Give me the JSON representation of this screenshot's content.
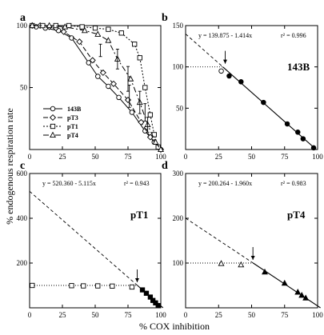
{
  "figure": {
    "ylabel": "% endogenous respiration rate",
    "xlabel": "% COX inhibition"
  },
  "chart_data": [
    {
      "type": "line",
      "panel_letter": "a",
      "xlim": [
        0,
        100
      ],
      "ylim": [
        0,
        100
      ],
      "xticks": [
        0,
        25,
        50,
        75,
        100
      ],
      "yticks": [
        50,
        100
      ],
      "legend_position": "bottom-left",
      "series": [
        {
          "name": "143B",
          "marker": "circle",
          "dash": "solid",
          "points": [
            [
              2,
              100
            ],
            [
              5,
              99
            ],
            [
              12,
              98
            ],
            [
              22,
              96
            ],
            [
              32,
              90
            ],
            [
              45,
              70
            ],
            [
              52,
              59
            ],
            [
              60,
              51
            ],
            [
              68,
              42
            ],
            [
              78,
              30
            ],
            [
              88,
              15
            ],
            [
              95,
              6
            ],
            [
              100,
              0
            ]
          ]
        },
        {
          "name": "pT3",
          "marker": "diamond",
          "dash": "6 3",
          "points": [
            [
              2,
              100
            ],
            [
              8,
              100
            ],
            [
              15,
              99
            ],
            [
              20,
              98
            ],
            [
              26,
              95
            ],
            [
              38,
              87
            ],
            [
              48,
              72
            ],
            [
              56,
              62
            ],
            [
              64,
              53
            ],
            [
              75,
              40
            ],
            [
              85,
              22
            ],
            [
              92,
              10
            ],
            [
              100,
              0
            ]
          ]
        },
        {
          "name": "pT1",
          "marker": "square",
          "dash": "2 2",
          "points": [
            [
              2,
              100
            ],
            [
              10,
              100
            ],
            [
              20,
              100
            ],
            [
              30,
              100
            ],
            [
              40,
              99
            ],
            [
              50,
              98
            ],
            [
              60,
              97
            ],
            [
              70,
              94
            ],
            [
              80,
              85
            ],
            [
              84,
              74
            ],
            [
              88,
              50
            ],
            [
              92,
              28
            ],
            [
              95,
              12
            ],
            [
              98,
              2
            ]
          ]
        },
        {
          "name": "pT4",
          "marker": "triangle",
          "dash": "7 3 2 3",
          "points": [
            [
              2,
              100
            ],
            [
              15,
              100
            ],
            [
              27,
              99
            ],
            [
              42,
              96
            ],
            [
              52,
              93
            ],
            [
              60,
              88
            ],
            [
              67,
              73
            ],
            [
              77,
              57
            ],
            [
              84,
              38
            ],
            [
              90,
              20
            ],
            [
              96,
              6
            ],
            [
              100,
              0
            ]
          ]
        }
      ],
      "error_bars": [
        {
          "x": 54,
          "y": 80,
          "err": 5
        },
        {
          "x": 67,
          "y": 73,
          "err": 8
        },
        {
          "x": 75,
          "y": 57,
          "err": 10
        },
        {
          "x": 76,
          "y": 43,
          "err": 9
        },
        {
          "x": 84,
          "y": 38,
          "err": 9
        },
        {
          "x": 88,
          "y": 30,
          "err": 7
        },
        {
          "x": 90,
          "y": 20,
          "err": 6
        }
      ]
    },
    {
      "type": "scatter",
      "panel_letter": "b",
      "label": "143B",
      "equation": "y = 139.875 - 1.414x",
      "r2": "r² = 0.996",
      "xlim": [
        0,
        100
      ],
      "ylim": [
        0,
        150
      ],
      "xticks": [
        0,
        25,
        50,
        75,
        100
      ],
      "yticks": [
        50,
        100,
        150
      ],
      "fit": {
        "intercept": 139.875,
        "slope": -1.414
      },
      "baseline": 100,
      "arrow_x": 30,
      "points": [
        {
          "x": 27,
          "y": 95,
          "filled": false
        },
        {
          "x": 33,
          "y": 89,
          "filled": true
        },
        {
          "x": 42,
          "y": 82,
          "filled": true
        },
        {
          "x": 59,
          "y": 57,
          "filled": true
        },
        {
          "x": 77,
          "y": 31,
          "filled": true
        },
        {
          "x": 85,
          "y": 21,
          "filled": true
        },
        {
          "x": 89,
          "y": 13,
          "filled": true
        },
        {
          "x": 97,
          "y": 2,
          "filled": true
        }
      ]
    },
    {
      "type": "scatter",
      "panel_letter": "c",
      "label": "pT1",
      "equation": "y = 520.360 - 5.115x",
      "r2": "r² = 0.943",
      "xlim": [
        0,
        100
      ],
      "ylim": [
        0,
        600
      ],
      "xticks": [
        0,
        25,
        50,
        75,
        100
      ],
      "yticks": [
        200,
        400,
        600
      ],
      "fit": {
        "intercept": 520.36,
        "slope": -5.115
      },
      "baseline": 100,
      "arrow_x": 82,
      "points": [
        {
          "x": 2,
          "y": 100,
          "filled": false
        },
        {
          "x": 32,
          "y": 99,
          "filled": false
        },
        {
          "x": 41,
          "y": 98,
          "filled": false
        },
        {
          "x": 52,
          "y": 98,
          "filled": false
        },
        {
          "x": 63,
          "y": 97,
          "filled": false
        },
        {
          "x": 78,
          "y": 93,
          "filled": false
        },
        {
          "x": 86,
          "y": 80,
          "filled": true
        },
        {
          "x": 89,
          "y": 65,
          "filled": true
        },
        {
          "x": 92,
          "y": 48,
          "filled": true
        },
        {
          "x": 94,
          "y": 33,
          "filled": true
        },
        {
          "x": 96,
          "y": 22,
          "filled": true
        },
        {
          "x": 98,
          "y": 10,
          "filled": true
        }
      ]
    },
    {
      "type": "scatter",
      "panel_letter": "d",
      "label": "pT4",
      "equation": "y = 200.264 - 1.960x",
      "r2": "r² = 0.983",
      "xlim": [
        0,
        100
      ],
      "ylim": [
        0,
        300
      ],
      "xticks": [
        0,
        25,
        50,
        75,
        100
      ],
      "yticks": [
        100,
        200,
        300
      ],
      "fit": {
        "intercept": 200.264,
        "slope": -1.96
      },
      "baseline": 100,
      "arrow_x": 51,
      "points": [
        {
          "x": 27,
          "y": 99,
          "filled": false
        },
        {
          "x": 42,
          "y": 96,
          "filled": false
        },
        {
          "x": 60,
          "y": 80,
          "filled": true
        },
        {
          "x": 75,
          "y": 55,
          "filled": true
        },
        {
          "x": 85,
          "y": 35,
          "filled": true
        },
        {
          "x": 88,
          "y": 28,
          "filled": true
        },
        {
          "x": 91,
          "y": 22,
          "filled": true
        }
      ]
    }
  ]
}
